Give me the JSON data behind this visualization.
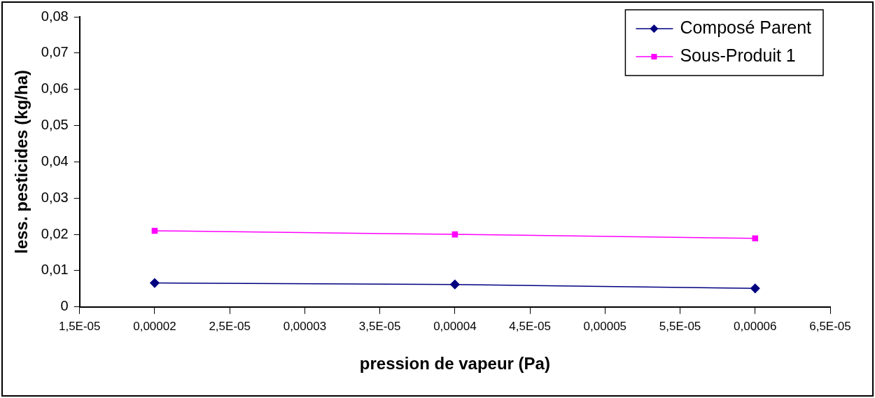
{
  "chart_data": {
    "type": "line",
    "xlabel": "pression de vapeur (Pa)",
    "ylabel": "less. pesticides (kg/ha)",
    "xlim": [
      1.5e-05,
      6.5e-05
    ],
    "xticks": [
      {
        "value": 1.5e-05,
        "label": "1,5E-05"
      },
      {
        "value": 2e-05,
        "label": "0,00002"
      },
      {
        "value": 2.5e-05,
        "label": "2,5E-05"
      },
      {
        "value": 3e-05,
        "label": "0,00003"
      },
      {
        "value": 3.5e-05,
        "label": "3,5E-05"
      },
      {
        "value": 4e-05,
        "label": "0,00004"
      },
      {
        "value": 4.5e-05,
        "label": "4,5E-05"
      },
      {
        "value": 5e-05,
        "label": "0,00005"
      },
      {
        "value": 5.5e-05,
        "label": "5,5E-05"
      },
      {
        "value": 6e-05,
        "label": "0,00006"
      },
      {
        "value": 6.5e-05,
        "label": "6,5E-05"
      }
    ],
    "ylim": [
      0,
      0.08
    ],
    "yticks": [
      {
        "value": 0,
        "label": "0"
      },
      {
        "value": 0.01,
        "label": "0,01"
      },
      {
        "value": 0.02,
        "label": "0,02"
      },
      {
        "value": 0.03,
        "label": "0,03"
      },
      {
        "value": 0.04,
        "label": "0,04"
      },
      {
        "value": 0.05,
        "label": "0,05"
      },
      {
        "value": 0.06,
        "label": "0,06"
      },
      {
        "value": 0.07,
        "label": "0,07"
      },
      {
        "value": 0.08,
        "label": "0,08"
      }
    ],
    "x": [
      2e-05,
      4e-05,
      6e-05
    ],
    "series": [
      {
        "name": "Composé Parent",
        "color": "#000080",
        "marker": "diamond",
        "values": [
          0.0066,
          0.0062,
          0.0051
        ]
      },
      {
        "name": "Sous-Produit 1",
        "color": "#ff00ff",
        "marker": "square",
        "values": [
          0.021,
          0.02,
          0.0189
        ]
      }
    ],
    "grid": false,
    "legend": "top right",
    "line_style": "solid"
  }
}
